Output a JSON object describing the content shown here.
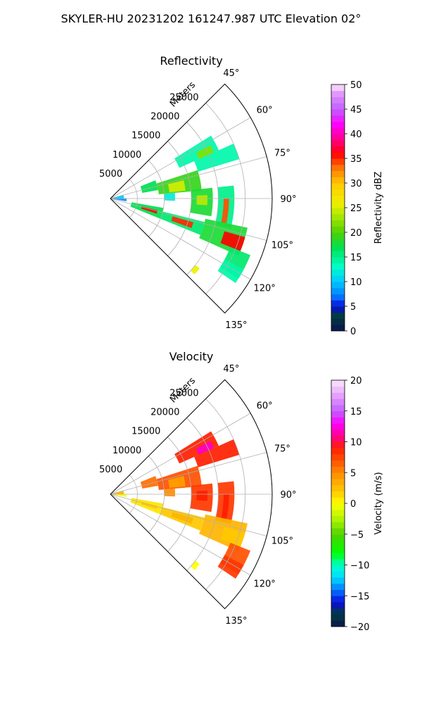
{
  "figure_title": "SKYLER-HU  20231202  161247.987 UTC Elevation 02°",
  "chart_data": [
    {
      "type": "polar-sector",
      "title": "Reflectivity",
      "radial_label": "Meters",
      "radial_ticks": [
        5000,
        10000,
        15000,
        20000,
        25000
      ],
      "radial_tick_labels": [
        "5000",
        "10000",
        "15000",
        "20000",
        "25000"
      ],
      "rmax": 30000,
      "azimuth_range": [
        45,
        135
      ],
      "azimuth_ticks": [
        45,
        60,
        75,
        90,
        105,
        120,
        135
      ],
      "azimuth_tick_labels": [
        "45°",
        "60°",
        "75°",
        "90°",
        "105°",
        "120°",
        "135°"
      ],
      "grid": true,
      "colorbar": {
        "label": "Reflectivity dBZ",
        "range": [
          0,
          50
        ],
        "ticks": [
          0,
          5,
          10,
          15,
          20,
          25,
          30,
          35,
          40,
          45,
          50
        ],
        "tick_labels": [
          "0",
          "5",
          "10",
          "15",
          "20",
          "25",
          "30",
          "35",
          "40",
          "45",
          "50"
        ],
        "stops": [
          [
            0,
            "#0a1450"
          ],
          [
            3,
            "#003c3c"
          ],
          [
            5,
            "#0a0adc"
          ],
          [
            7,
            "#0078ff"
          ],
          [
            10,
            "#00c8ff"
          ],
          [
            13,
            "#00ffc8"
          ],
          [
            17,
            "#00e050"
          ],
          [
            20,
            "#50d000"
          ],
          [
            23,
            "#a0e600"
          ],
          [
            26,
            "#f0f000"
          ],
          [
            30,
            "#ffc800"
          ],
          [
            33,
            "#ff7800"
          ],
          [
            36,
            "#ff0000"
          ],
          [
            39,
            "#ff0090"
          ],
          [
            42,
            "#ff00ff"
          ],
          [
            45,
            "#c060ff"
          ],
          [
            48,
            "#e090ff"
          ],
          [
            50,
            "#fbe8fb"
          ]
        ]
      },
      "echo_bands": [
        {
          "az": [
            68,
            80
          ],
          "r": [
            6000,
            9000
          ],
          "value": 17
        },
        {
          "az": [
            72,
            85
          ],
          "r": [
            9000,
            17000
          ],
          "value": 19
        },
        {
          "az": [
            76,
            84
          ],
          "r": [
            11000,
            14000
          ],
          "value": 25
        },
        {
          "az": [
            58,
            66
          ],
          "r": [
            14000,
            22000
          ],
          "value": 14
        },
        {
          "az": [
            62,
            66
          ],
          "r": [
            18000,
            21000
          ],
          "value": 22
        },
        {
          "az": [
            66,
            73
          ],
          "r": [
            17000,
            25000
          ],
          "value": 14
        },
        {
          "az": [
            84,
            100
          ],
          "r": [
            15000,
            19000
          ],
          "value": 18
        },
        {
          "az": [
            88,
            94
          ],
          "r": [
            16000,
            18000
          ],
          "value": 24
        },
        {
          "az": [
            84,
            104
          ],
          "r": [
            20000,
            23000
          ],
          "value": 15
        },
        {
          "az": [
            90,
            102
          ],
          "r": [
            21000,
            22000
          ],
          "value": 34
        },
        {
          "az": [
            100,
            112
          ],
          "r": [
            4000,
            10000
          ],
          "value": 17
        },
        {
          "az": [
            104,
            108
          ],
          "r": [
            6000,
            9000
          ],
          "value": 36
        },
        {
          "az": [
            104,
            112
          ],
          "r": [
            10000,
            18000
          ],
          "value": 16
        },
        {
          "az": [
            106,
            110
          ],
          "r": [
            12000,
            16000
          ],
          "value": 35
        },
        {
          "az": [
            102,
            114
          ],
          "r": [
            18000,
            26000
          ],
          "value": 18
        },
        {
          "az": [
            106,
            112
          ],
          "r": [
            22000,
            26000
          ],
          "value": 36
        },
        {
          "az": [
            112,
            122
          ],
          "r": [
            24000,
            28000
          ],
          "value": 16
        },
        {
          "az": [
            90,
            100
          ],
          "r": [
            0,
            3000
          ],
          "value": 8
        },
        {
          "az": [
            74,
            90
          ],
          "r": [
            0,
            2500
          ],
          "value": 10
        },
        {
          "az": [
            118,
            124
          ],
          "r": [
            24000,
            28000
          ],
          "value": 14
        },
        {
          "az": [
            128,
            132
          ],
          "r": [
            20000,
            21000
          ],
          "value": 26
        },
        {
          "az": [
            85,
            92
          ],
          "r": [
            10000,
            12000
          ],
          "value": 12
        }
      ]
    },
    {
      "type": "polar-sector",
      "title": "Velocity",
      "radial_label": "Meters",
      "radial_ticks": [
        5000,
        10000,
        15000,
        20000,
        25000
      ],
      "radial_tick_labels": [
        "5000",
        "10000",
        "15000",
        "20000",
        "25000"
      ],
      "rmax": 30000,
      "azimuth_range": [
        45,
        135
      ],
      "azimuth_ticks": [
        45,
        60,
        75,
        90,
        105,
        120,
        135
      ],
      "azimuth_tick_labels": [
        "45°",
        "60°",
        "75°",
        "90°",
        "105°",
        "120°",
        "135°"
      ],
      "grid": true,
      "colorbar": {
        "label": "Velocity (m/s)",
        "range": [
          -20,
          20
        ],
        "ticks": [
          -20,
          -15,
          -10,
          -5,
          0,
          5,
          10,
          15,
          20
        ],
        "tick_labels": [
          "−20",
          "−15",
          "−10",
          "−5",
          "0",
          "5",
          "10",
          "15",
          "20"
        ],
        "stops": [
          [
            -20,
            "#0a1450"
          ],
          [
            -18,
            "#003c3c"
          ],
          [
            -16,
            "#0a0adc"
          ],
          [
            -14,
            "#0078ff"
          ],
          [
            -12,
            "#00dcff"
          ],
          [
            -10,
            "#00ffc8"
          ],
          [
            -8,
            "#00ff00"
          ],
          [
            -5,
            "#50d000"
          ],
          [
            -3,
            "#a0f000"
          ],
          [
            0,
            "#ffff00"
          ],
          [
            2,
            "#ffc800"
          ],
          [
            5,
            "#ff8c00"
          ],
          [
            7,
            "#ff5000"
          ],
          [
            9,
            "#ff1e00"
          ],
          [
            11,
            "#ff0090"
          ],
          [
            13,
            "#ff00ff"
          ],
          [
            15,
            "#c060ff"
          ],
          [
            17,
            "#e090ff"
          ],
          [
            20,
            "#fbe8fb"
          ]
        ]
      },
      "echo_bands": [
        {
          "az": [
            68,
            80
          ],
          "r": [
            6000,
            9000
          ],
          "value": 6
        },
        {
          "az": [
            72,
            85
          ],
          "r": [
            9000,
            17000
          ],
          "value": 7
        },
        {
          "az": [
            76,
            84
          ],
          "r": [
            11000,
            14000
          ],
          "value": 4
        },
        {
          "az": [
            58,
            66
          ],
          "r": [
            14000,
            22000
          ],
          "value": 9
        },
        {
          "az": [
            62,
            66
          ],
          "r": [
            18000,
            21000
          ],
          "value": 12
        },
        {
          "az": [
            66,
            73
          ],
          "r": [
            17000,
            25000
          ],
          "value": 9
        },
        {
          "az": [
            84,
            100
          ],
          "r": [
            15000,
            19000
          ],
          "value": 8
        },
        {
          "az": [
            88,
            94
          ],
          "r": [
            16000,
            18000
          ],
          "value": 9
        },
        {
          "az": [
            84,
            104
          ],
          "r": [
            20000,
            23000
          ],
          "value": 8
        },
        {
          "az": [
            90,
            102
          ],
          "r": [
            21000,
            22000
          ],
          "value": 9
        },
        {
          "az": [
            100,
            112
          ],
          "r": [
            4000,
            10000
          ],
          "value": 1
        },
        {
          "az": [
            104,
            108
          ],
          "r": [
            6000,
            9000
          ],
          "value": 2
        },
        {
          "az": [
            104,
            112
          ],
          "r": [
            10000,
            18000
          ],
          "value": 2
        },
        {
          "az": [
            106,
            110
          ],
          "r": [
            12000,
            16000
          ],
          "value": 3
        },
        {
          "az": [
            102,
            114
          ],
          "r": [
            18000,
            26000
          ],
          "value": 3
        },
        {
          "az": [
            106,
            112
          ],
          "r": [
            22000,
            26000
          ],
          "value": 2
        },
        {
          "az": [
            112,
            122
          ],
          "r": [
            24000,
            28000
          ],
          "value": 7
        },
        {
          "az": [
            90,
            100
          ],
          "r": [
            0,
            3000
          ],
          "value": 0
        },
        {
          "az": [
            74,
            90
          ],
          "r": [
            0,
            2500
          ],
          "value": 3
        },
        {
          "az": [
            118,
            124
          ],
          "r": [
            24000,
            28000
          ],
          "value": 8
        },
        {
          "az": [
            128,
            132
          ],
          "r": [
            20000,
            21000
          ],
          "value": 0
        },
        {
          "az": [
            85,
            92
          ],
          "r": [
            10000,
            12000
          ],
          "value": 5
        }
      ]
    }
  ]
}
